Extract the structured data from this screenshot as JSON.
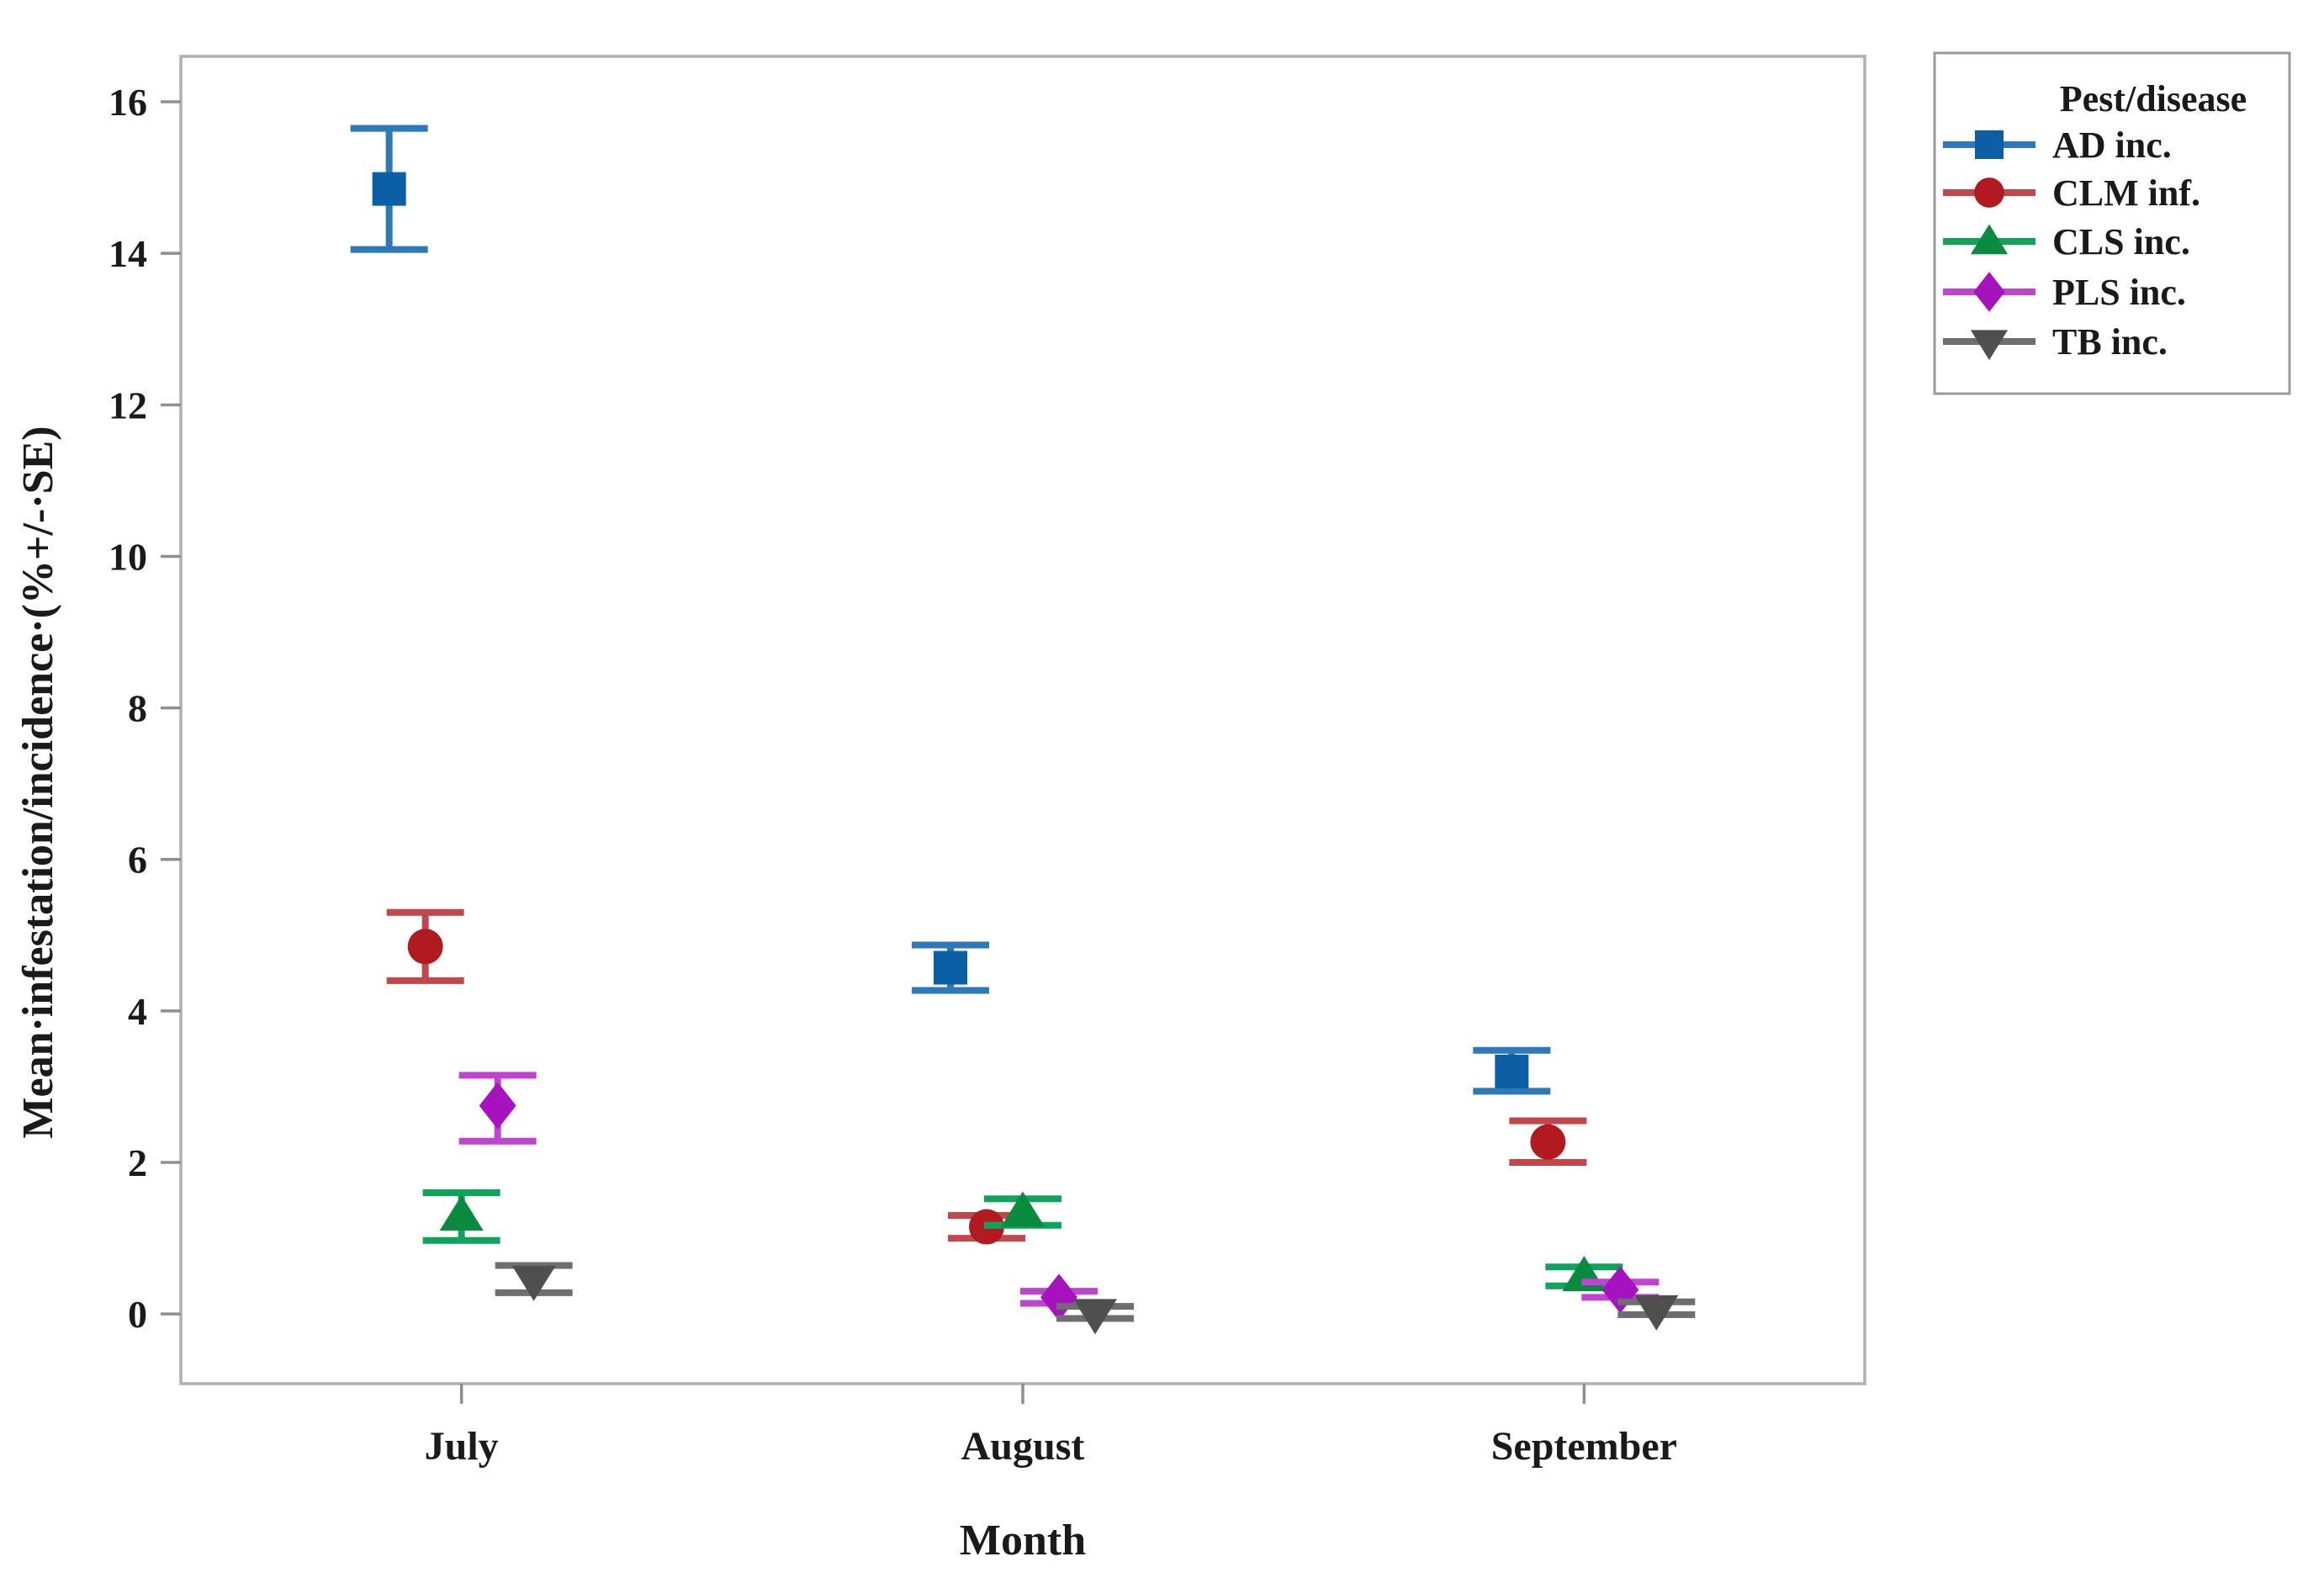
{
  "chart_data": {
    "type": "scatter",
    "title": "",
    "xlabel": "Month",
    "ylabel": "Mean·infestation/incidence·(%+/-·SE)",
    "categories": [
      "July",
      "August",
      "September"
    ],
    "yticks": [
      0,
      2,
      4,
      6,
      8,
      10,
      12,
      14,
      16
    ],
    "ylim": [
      -0.92,
      16.6
    ],
    "grid": false,
    "error_bars": "standard error, vertical with caps",
    "legend": {
      "title": "Pest/disease",
      "position": "top-right-outside",
      "entries": [
        "AD inc.",
        "CLM inf.",
        "CLS inc.",
        "PLS inc.",
        "TB inc."
      ]
    },
    "series": [
      {
        "name": "AD inc.",
        "marker": "square",
        "color": "#0b5fa5",
        "bar_color": "#2e79b8",
        "values": [
          {
            "category": "July",
            "mean": 14.85,
            "upper": 15.65,
            "lower": 14.05
          },
          {
            "category": "August",
            "mean": 4.57,
            "upper": 4.87,
            "lower": 4.27
          },
          {
            "category": "September",
            "mean": 3.2,
            "upper": 3.48,
            "lower": 2.94
          }
        ]
      },
      {
        "name": "CLM inf.",
        "marker": "circle",
        "color": "#b11a1f",
        "bar_color": "#c0474b",
        "values": [
          {
            "category": "July",
            "mean": 4.85,
            "upper": 5.3,
            "lower": 4.4
          },
          {
            "category": "August",
            "mean": 1.15,
            "upper": 1.3,
            "lower": 1.0
          },
          {
            "category": "September",
            "mean": 2.27,
            "upper": 2.55,
            "lower": 2.0
          }
        ]
      },
      {
        "name": "CLS inc.",
        "marker": "triangle-up",
        "color": "#0a8a3e",
        "bar_color": "#0fa35c",
        "values": [
          {
            "category": "July",
            "mean": 1.3,
            "upper": 1.6,
            "lower": 0.97
          },
          {
            "category": "August",
            "mean": 1.35,
            "upper": 1.52,
            "lower": 1.17
          },
          {
            "category": "September",
            "mean": 0.5,
            "upper": 0.62,
            "lower": 0.37
          }
        ]
      },
      {
        "name": "PLS inc.",
        "marker": "diamond",
        "color": "#a512be",
        "bar_color": "#bf44cf",
        "values": [
          {
            "category": "July",
            "mean": 2.75,
            "upper": 3.15,
            "lower": 2.28
          },
          {
            "category": "August",
            "mean": 0.22,
            "upper": 0.3,
            "lower": 0.14
          },
          {
            "category": "September",
            "mean": 0.32,
            "upper": 0.42,
            "lower": 0.22
          }
        ]
      },
      {
        "name": "TB inc.",
        "marker": "triangle-down",
        "color": "#4f4f4f",
        "bar_color": "#6e6e6e",
        "values": [
          {
            "category": "July",
            "mean": 0.46,
            "upper": 0.64,
            "lower": 0.28
          },
          {
            "category": "August",
            "mean": 0.02,
            "upper": 0.1,
            "lower": -0.06
          },
          {
            "category": "September",
            "mean": 0.07,
            "upper": 0.16,
            "lower": -0.01
          }
        ]
      }
    ]
  }
}
